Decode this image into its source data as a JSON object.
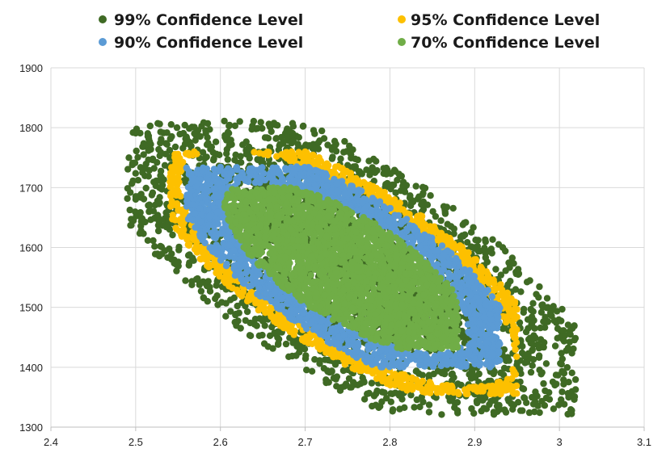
{
  "chart_data": {
    "type": "scatter",
    "title": "",
    "xlabel": "",
    "ylabel": "",
    "xlim": [
      2.4,
      3.1
    ],
    "ylim": [
      1300,
      1900
    ],
    "x_ticks": [
      "2.4",
      "2.5",
      "2.6",
      "2.7",
      "2.8",
      "2.9",
      "3",
      "3.1"
    ],
    "y_ticks": [
      "1300",
      "1400",
      "1500",
      "1600",
      "1700",
      "1800",
      "1900"
    ],
    "grid": true,
    "legend_position": "top",
    "series": [
      {
        "name": "99% Confidence Level",
        "color": "#3f6a24",
        "distribution": {
          "center": [
            2.75,
            1565
          ],
          "sd": [
            0.092,
            92
          ],
          "correlation": -0.72,
          "radius_range": [
            0,
            3.3
          ],
          "count": 2600
        },
        "extent": {
          "x": [
            2.49,
            3.02
          ],
          "y": [
            1320,
            1812
          ]
        }
      },
      {
        "name": "95% Confidence Level",
        "color": "#fdc000",
        "distribution": {
          "center": [
            2.75,
            1565
          ],
          "sd": [
            0.092,
            92
          ],
          "correlation": -0.72,
          "radius_range": [
            2.15,
            2.55
          ],
          "count": 900
        },
        "extent": {
          "x": [
            2.54,
            2.95
          ],
          "y": [
            1355,
            1760
          ]
        }
      },
      {
        "name": "90% Confidence Level",
        "color": "#5b9bd5",
        "distribution": {
          "center": [
            2.75,
            1565
          ],
          "sd": [
            0.092,
            92
          ],
          "correlation": -0.72,
          "radius_range": [
            1.55,
            2.22
          ],
          "count": 1600
        },
        "extent": {
          "x": [
            2.56,
            2.93
          ],
          "y": [
            1400,
            1735
          ]
        }
      },
      {
        "name": "70% Confidence Level",
        "color": "#70ad47",
        "distribution": {
          "center": [
            2.75,
            1565
          ],
          "sd": [
            0.092,
            92
          ],
          "correlation": -0.72,
          "radius_range": [
            0,
            1.58
          ],
          "count": 2400
        },
        "extent": {
          "x": [
            2.6,
            2.88
          ],
          "y": [
            1430,
            1700
          ]
        }
      }
    ],
    "legend": [
      {
        "name": "99% Confidence Level",
        "color": "#3f6a24"
      },
      {
        "name": "95% Confidence Level",
        "color": "#fdc000"
      },
      {
        "name": "90% Confidence Level",
        "color": "#5b9bd5"
      },
      {
        "name": "70% Confidence Level",
        "color": "#70ad47"
      }
    ]
  }
}
